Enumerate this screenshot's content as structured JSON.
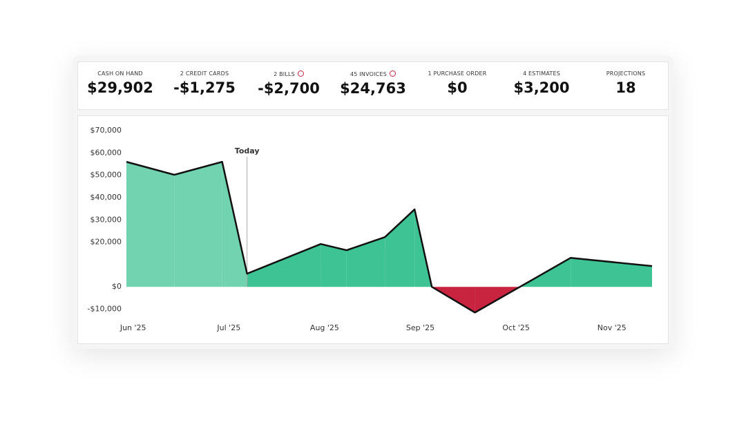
{
  "kpis": [
    {
      "label": "CASH ON HAND",
      "value": "$29,902"
    },
    {
      "label": "2 CREDIT CARDS",
      "value": "-$1,275"
    },
    {
      "label": "2 BILLS",
      "value": "-$2,700",
      "alert": true
    },
    {
      "label": "45 INVOICES",
      "value": "$24,763",
      "alert": true
    },
    {
      "label": "1 PURCHASE ORDER",
      "value": "$0"
    },
    {
      "label": "4 ESTIMATES",
      "value": "$3,200"
    },
    {
      "label": "PROJECTIONS",
      "value": "18"
    }
  ],
  "chart_data": {
    "type": "area",
    "x": [
      -0.07,
      0.43,
      0.93,
      1.19,
      1.96,
      2.23,
      2.63,
      2.94,
      3.12,
      3.57,
      4.04,
      4.57,
      5.42
    ],
    "values": [
      56000,
      50200,
      56000,
      5900,
      19200,
      16400,
      22300,
      34700,
      0,
      -11500,
      0,
      13000,
      9300
    ],
    "colors": {
      "past": "#72d3b0",
      "future": "#3dc394",
      "negative": "#c8233f",
      "line": "#111111"
    },
    "annotation": {
      "text": "Today",
      "x": 1.19,
      "color": "#2e8b65"
    },
    "xlim": [
      -0.07,
      5.42
    ],
    "xticks": [
      {
        "value": 0,
        "label": "Jun '25"
      },
      {
        "value": 1,
        "label": "Jul '25"
      },
      {
        "value": 2,
        "label": "Aug '25"
      },
      {
        "value": 3,
        "label": "Sep '25"
      },
      {
        "value": 4,
        "label": "Oct '25"
      },
      {
        "value": 5,
        "label": "Nov '25"
      }
    ],
    "ylim": [
      -12000,
      70000
    ],
    "yticks": [
      {
        "value": 70000,
        "label": "$70,000"
      },
      {
        "value": 60000,
        "label": "$60,000"
      },
      {
        "value": 50000,
        "label": "$50,000"
      },
      {
        "value": 40000,
        "label": "$40,000"
      },
      {
        "value": 30000,
        "label": "$30,000"
      },
      {
        "value": 20000,
        "label": "$20,000"
      },
      {
        "value": 0,
        "label": "$0"
      },
      {
        "value": -10000,
        "label": "-$10,000"
      }
    ]
  }
}
